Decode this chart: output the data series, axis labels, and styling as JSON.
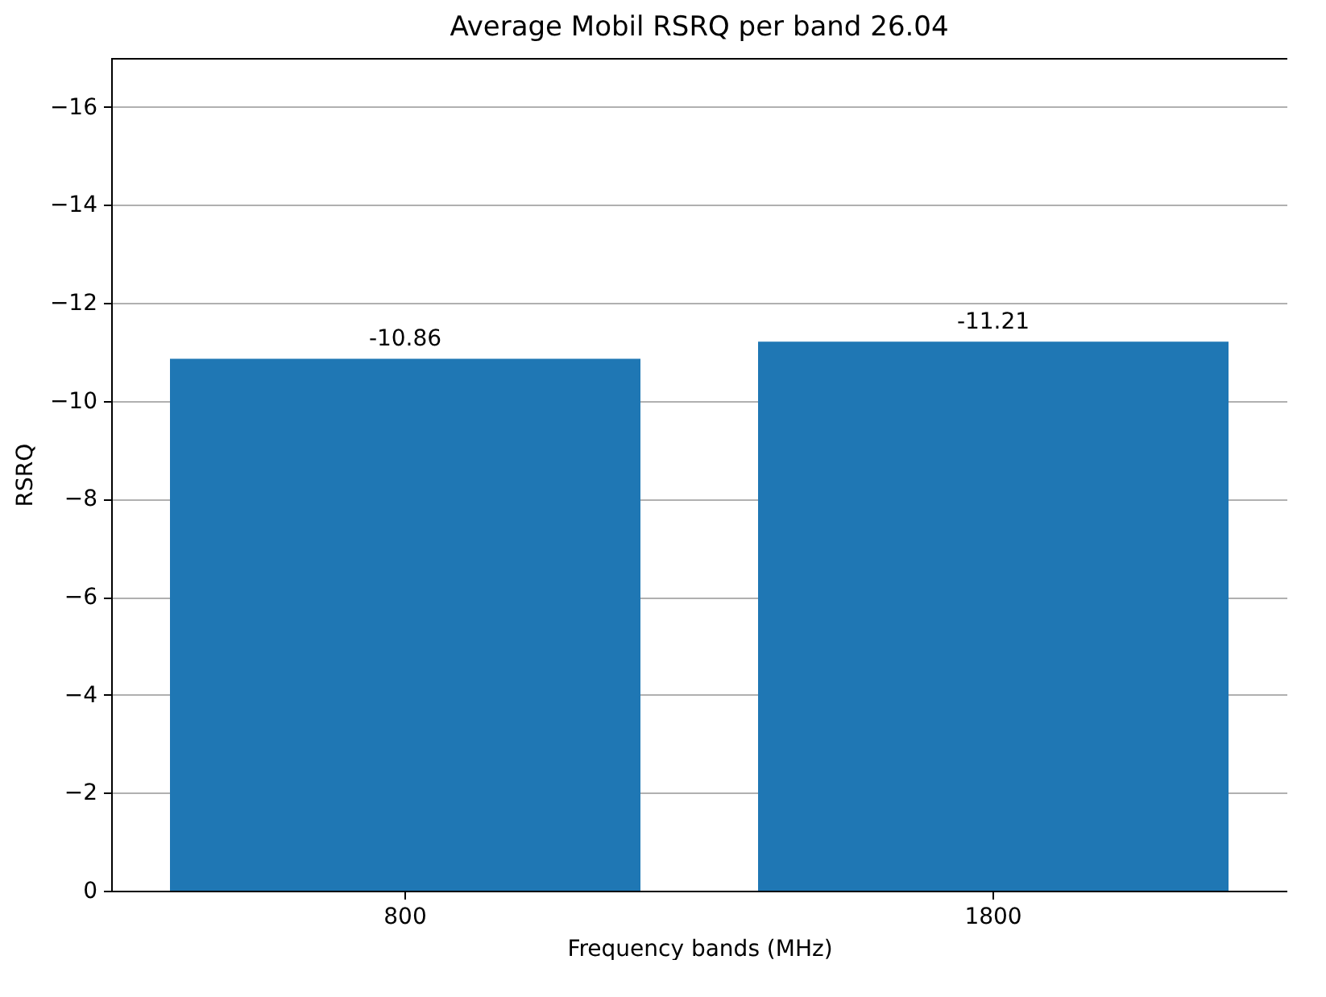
{
  "chart_data": {
    "type": "bar",
    "title": "Average Mobil RSRQ per band 26.04",
    "xlabel": "Frequency bands (MHz)",
    "ylabel": "RSRQ",
    "categories": [
      "800",
      "1800"
    ],
    "values": [
      -10.86,
      -11.21
    ],
    "color": "#1f77b4",
    "ylim": [
      0,
      -17
    ],
    "yticks": [
      0,
      -2,
      -4,
      -6,
      -8,
      -10,
      -12,
      -14,
      -16
    ],
    "grid": "y",
    "data_labels": true
  }
}
